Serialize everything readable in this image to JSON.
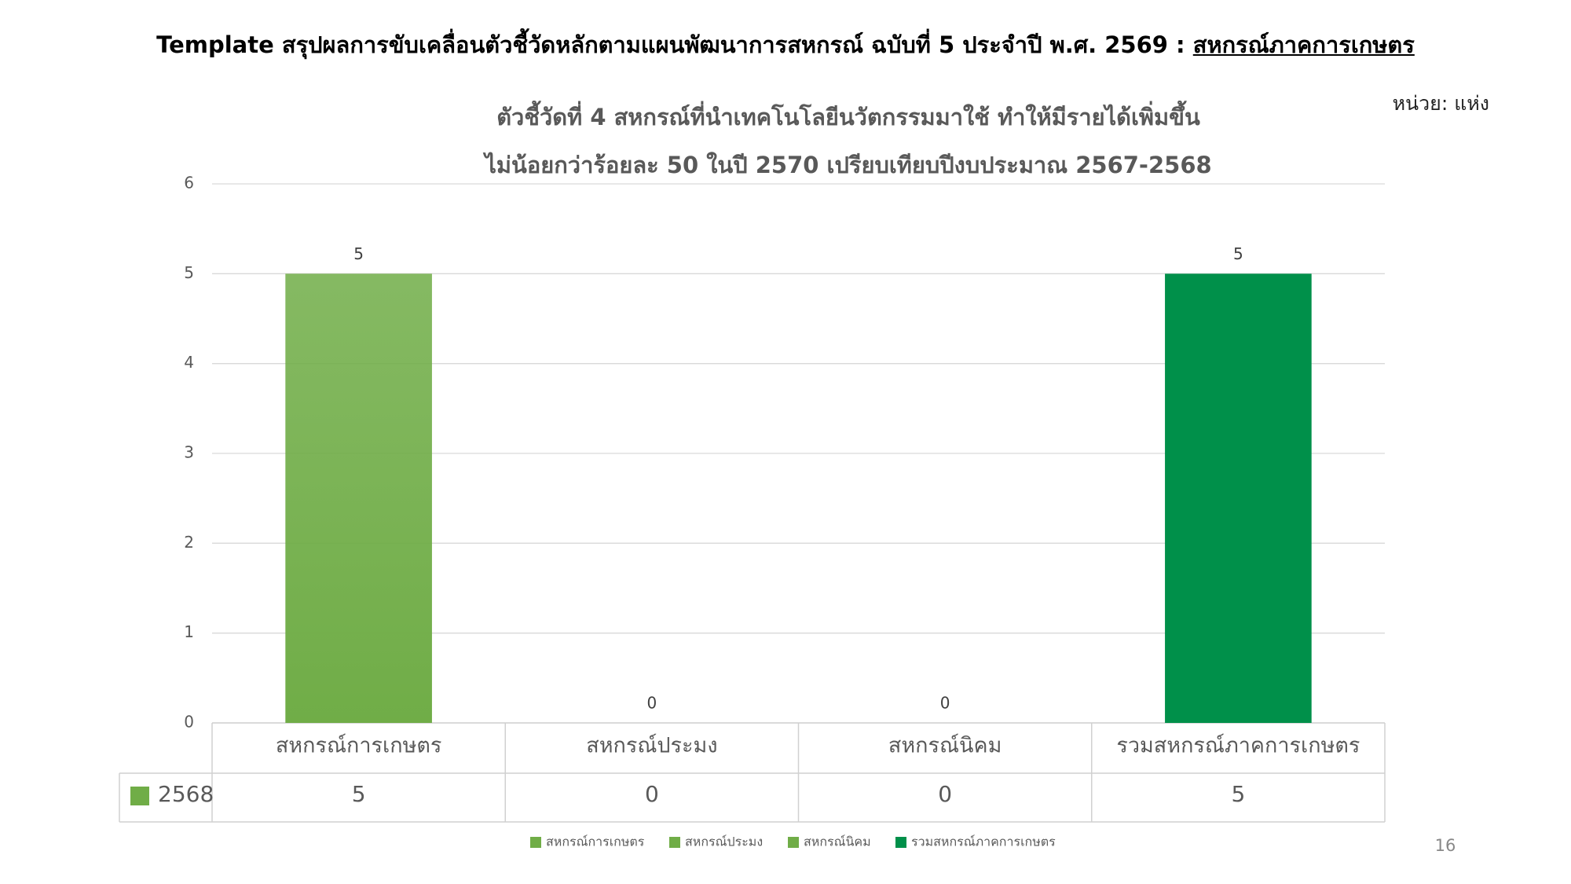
{
  "page_title": "Template สรุปผลการขับเคลื่อนตัวชี้วัดหลักตามแผนพัฒนาการสหกรณ์ ฉบับที่ 5 ประจำปี พ.ศ. 2569 :",
  "page_title_underlined": "สหกรณ์ภาคการเกษตร",
  "unit": "หน่วย: แห่ง",
  "page_number": "16",
  "chart_data": {
    "type": "bar",
    "title": "ตัวชี้วัดที่ 4 สหกรณ์ที่นำเทคโนโลยีนวัตกรรมมาใช้ ทำให้มีรายได้เพิ่มขึ้น",
    "subtitle": "ไม่น้อยกว่าร้อยละ 50 ในปี 2570 เปรียบเทียบปีงบประมาณ 2567-2568",
    "categories": [
      "สหกรณ์การเกษตร",
      "สหกรณ์ประมง",
      "สหกรณ์นิคม",
      "รวมสหกรณ์ภาคการเกษตร"
    ],
    "colors": [
      "#70ad47",
      "#70ad47",
      "#70ad47",
      "#00904a"
    ],
    "series": [
      {
        "name": "2568",
        "color": "#70ad47",
        "values": [
          5,
          0,
          0,
          5
        ]
      }
    ],
    "ylim": [
      0,
      6
    ],
    "yticks": [
      0,
      1,
      2,
      3,
      4,
      5,
      6
    ],
    "grid": true
  }
}
